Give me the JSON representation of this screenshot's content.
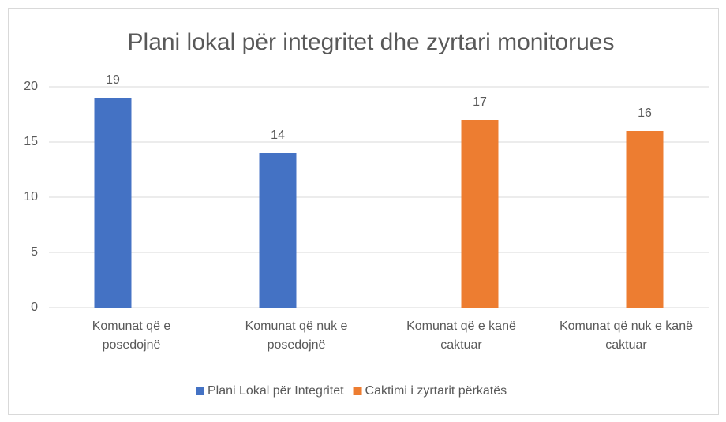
{
  "chart_data": {
    "type": "bar",
    "title": "Plani lokal për integritet dhe zyrtari monitorues",
    "categories": [
      "Komunat që e posedojnë",
      "Komunat që nuk e posedojnë",
      "Komunat që e kanë caktuar",
      "Komunat që nuk e kanë caktuar"
    ],
    "series": [
      {
        "name": "Plani Lokal për Integritet",
        "color": "#4472c4",
        "values": [
          19,
          14,
          null,
          null
        ]
      },
      {
        "name": "Caktimi i zyrtarit përkatës",
        "color": "#ed7d31",
        "values": [
          null,
          null,
          17,
          16
        ]
      }
    ],
    "ylim": [
      0,
      20
    ],
    "yticks": [
      0,
      5,
      10,
      15,
      20
    ],
    "grid": true,
    "legend": "bottom"
  }
}
